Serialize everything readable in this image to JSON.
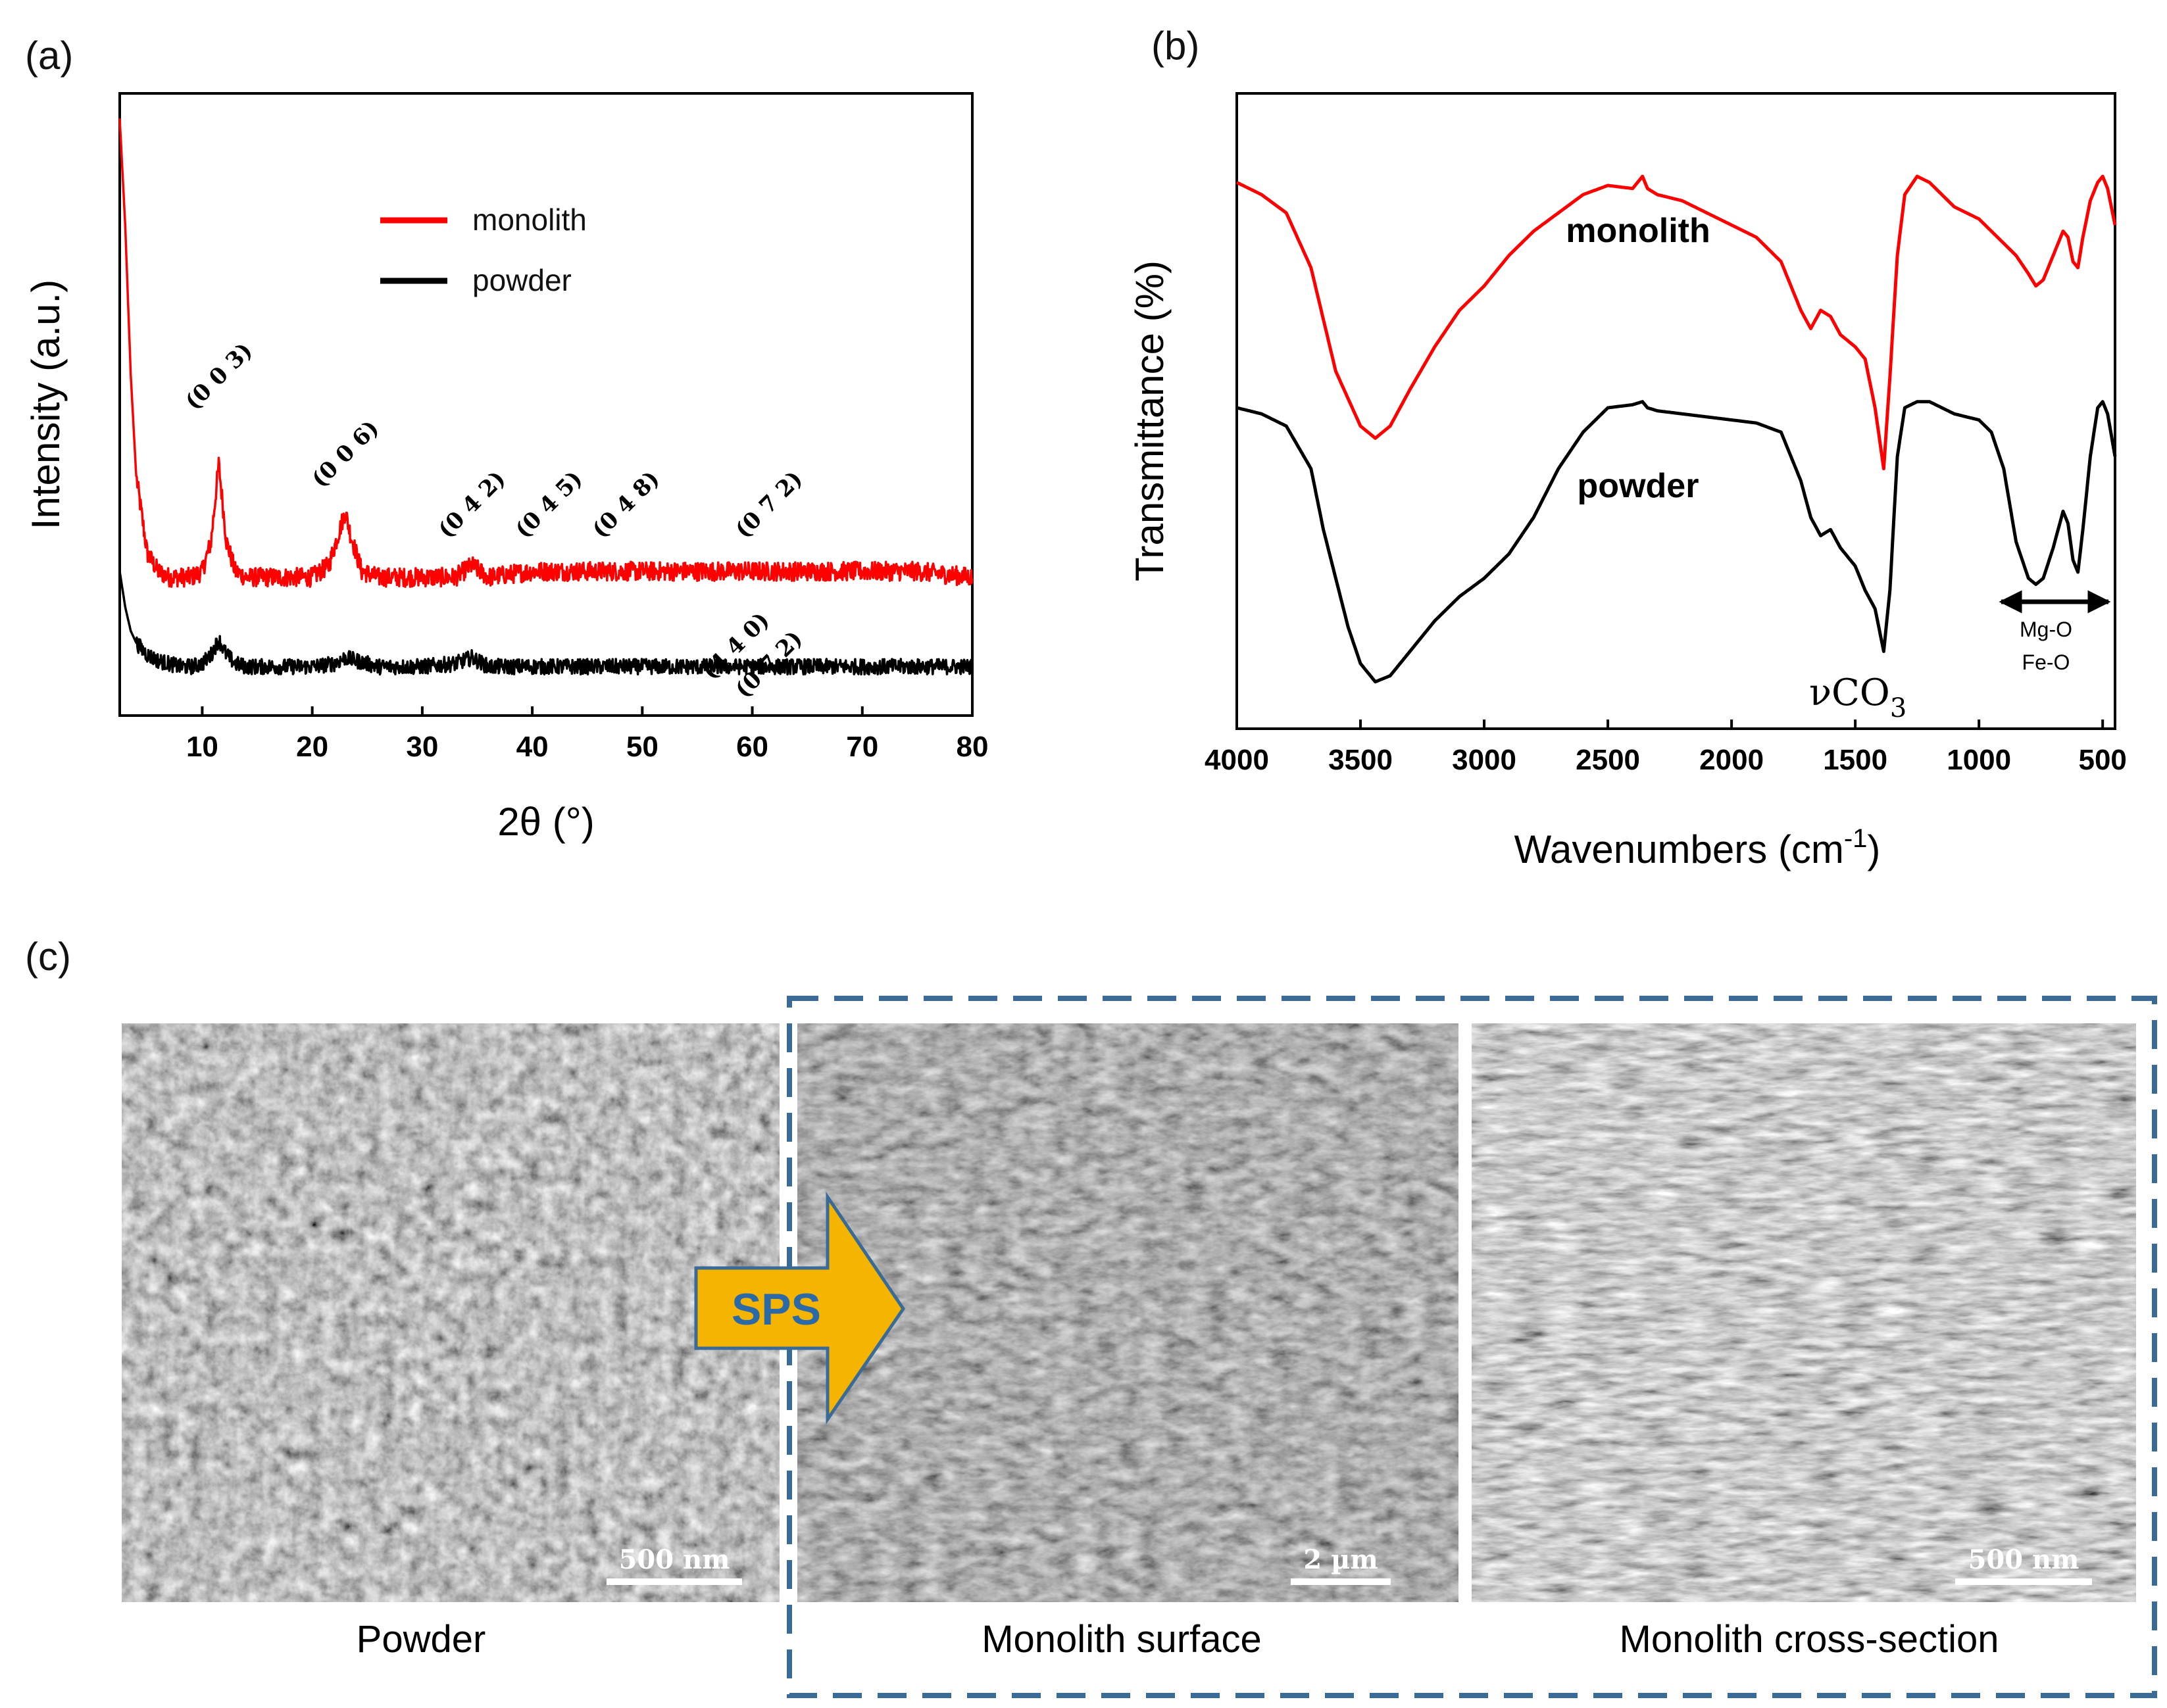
{
  "panels": {
    "a": "(a)",
    "b": "(b)",
    "c": "(c)"
  },
  "colors": {
    "monolith": "#ff0000",
    "powder": "#000000",
    "dash_box": "#3a6b96",
    "arrow_fill": "#f5b400",
    "arrow_text": "#2b6aa6"
  },
  "chart_data": [
    {
      "type": "line",
      "panel": "(a)",
      "xlabel": "2θ (°)",
      "ylabel": "Intensity (a.u.)",
      "xlim": [
        2.5,
        80
      ],
      "xticks": [
        "10",
        "20",
        "30",
        "40",
        "50",
        "60",
        "70",
        "80"
      ],
      "yticks_visible": false,
      "legend": {
        "placement": "top-center",
        "entries": [
          "monolith",
          "powder"
        ]
      },
      "series": [
        {
          "name": "monolith",
          "color": "#ff0000",
          "x": [
            2.5,
            3,
            3.5,
            4,
            5,
            6,
            7,
            8,
            9,
            10,
            10.8,
            11.5,
            12.2,
            13,
            14,
            16,
            18,
            20,
            21.5,
            22.5,
            23,
            23.5,
            24.5,
            26,
            30,
            33,
            34.5,
            36,
            40,
            45,
            50,
            55,
            60,
            65,
            70,
            75,
            80
          ],
          "values": [
            98,
            80,
            55,
            38,
            25,
            22,
            21,
            21,
            21,
            22,
            27,
            40,
            27,
            22,
            21,
            21,
            21,
            21,
            23,
            29,
            32,
            28,
            22,
            21,
            21,
            21,
            23,
            21,
            22,
            22,
            22,
            22,
            22,
            22,
            22,
            22,
            21
          ]
        },
        {
          "name": "powder",
          "color": "#000000",
          "x": [
            2.5,
            3,
            3.5,
            4,
            5,
            6,
            7,
            8,
            9,
            10,
            10.8,
            11.5,
            12.2,
            13,
            14,
            16,
            18,
            20,
            22,
            23,
            24,
            26,
            30,
            33,
            34.5,
            36,
            40,
            45,
            50,
            55,
            60,
            65,
            70,
            75,
            80
          ],
          "values": [
            22,
            16,
            12,
            10,
            8,
            7,
            6.5,
            6,
            6,
            6.5,
            8,
            10.5,
            8,
            6.5,
            6,
            6,
            6,
            6,
            6.5,
            7.5,
            7,
            6,
            6,
            6.5,
            7.5,
            6,
            6,
            6,
            6,
            6,
            6,
            6,
            6,
            6,
            6
          ]
        }
      ],
      "annotations": {
        "monolith_peaks": [
          {
            "label": "(0 0 3)",
            "x": 11.5
          },
          {
            "label": "(0 0 6)",
            "x": 23
          },
          {
            "label": "(0 4 2)",
            "x": 34.5
          },
          {
            "label": "(0 4 5)",
            "x": 41.5
          },
          {
            "label": "(0 4 8)",
            "x": 48.5
          },
          {
            "label": "(0 7 2)",
            "x": 61.5
          }
        ],
        "powder_peaks": [
          {
            "label": "(4 4 0)",
            "x": 58.5
          },
          {
            "label": "(0 7 2)",
            "x": 61.5
          }
        ]
      }
    },
    {
      "type": "line",
      "panel": "(b)",
      "xlabel": "Wavenumbers (cm",
      "xlabel_sup": "-1",
      "xlabel_end": ")",
      "ylabel": "Transmittance (%)",
      "xlim": [
        4000,
        450
      ],
      "x_reversed": true,
      "xticks": [
        "4000",
        "3500",
        "3000",
        "2500",
        "2000",
        "1500",
        "1000",
        "500"
      ],
      "yticks_visible": false,
      "series": [
        {
          "name": "monolith",
          "color": "#ff0000",
          "x": [
            4000,
            3900,
            3800,
            3700,
            3600,
            3500,
            3440,
            3380,
            3300,
            3200,
            3100,
            3000,
            2900,
            2800,
            2700,
            2600,
            2500,
            2400,
            2360,
            2340,
            2300,
            2200,
            2100,
            2000,
            1900,
            1800,
            1720,
            1680,
            1640,
            1600,
            1560,
            1500,
            1460,
            1420,
            1385,
            1360,
            1330,
            1300,
            1250,
            1200,
            1150,
            1100,
            1050,
            1000,
            950,
            900,
            850,
            800,
            770,
            740,
            700,
            660,
            640,
            620,
            600,
            580,
            550,
            520,
            500,
            480,
            450
          ],
          "values": [
            87,
            85,
            82,
            73,
            56,
            47,
            45,
            47,
            53,
            60,
            66,
            70,
            75,
            79,
            82,
            85,
            86.5,
            86,
            88,
            86,
            85,
            84,
            82,
            80,
            78,
            74,
            66,
            63,
            66,
            65,
            62,
            60,
            58,
            50,
            40,
            55,
            75,
            85,
            88,
            87,
            85,
            83,
            82,
            81,
            79,
            77,
            75,
            72,
            70,
            71,
            75,
            79,
            78,
            74,
            73,
            78,
            84,
            87,
            88,
            86,
            80
          ]
        },
        {
          "name": "powder",
          "color": "#000000",
          "x": [
            4000,
            3900,
            3800,
            3700,
            3650,
            3600,
            3550,
            3500,
            3440,
            3380,
            3300,
            3200,
            3100,
            3000,
            2900,
            2800,
            2700,
            2600,
            2500,
            2400,
            2360,
            2340,
            2300,
            2200,
            2100,
            2000,
            1900,
            1800,
            1720,
            1680,
            1640,
            1600,
            1560,
            1500,
            1460,
            1420,
            1385,
            1360,
            1330,
            1300,
            1250,
            1200,
            1150,
            1100,
            1050,
            1000,
            950,
            900,
            850,
            800,
            770,
            740,
            700,
            660,
            640,
            620,
            600,
            580,
            550,
            520,
            500,
            480,
            450
          ],
          "values": [
            50,
            49,
            47,
            40,
            30,
            22,
            14,
            8,
            5,
            6,
            10,
            15,
            19,
            22,
            26,
            32,
            40,
            46,
            50,
            50.5,
            51,
            50,
            49.5,
            49,
            48.5,
            48,
            47.5,
            46,
            38,
            32,
            29,
            30,
            27,
            24,
            20,
            17,
            10,
            20,
            42,
            50,
            51,
            51,
            50,
            49,
            48.5,
            48,
            46,
            40,
            28,
            22,
            21,
            22,
            27,
            33,
            31,
            25,
            23,
            30,
            42,
            50,
            51,
            49,
            42
          ]
        }
      ],
      "series_labels": [
        "monolith",
        "powder"
      ],
      "annotations": {
        "nu_co3": {
          "prefix": "ν",
          "text": "CO",
          "subscript": "3"
        },
        "range_arrow": {
          "from": 950,
          "to": 450,
          "lines": [
            "Mg-O",
            "Fe-O"
          ]
        }
      }
    }
  ],
  "panel_c": {
    "images": [
      {
        "caption": "Powder",
        "scale_bar": "500 nm",
        "icon": "sem-micrograph"
      },
      {
        "caption": "Monolith surface",
        "scale_bar": "2 µm",
        "icon": "sem-micrograph"
      },
      {
        "caption": "Monolith cross-section",
        "scale_bar": "500 nm",
        "icon": "sem-micrograph"
      }
    ],
    "arrow_label": "SPS"
  }
}
